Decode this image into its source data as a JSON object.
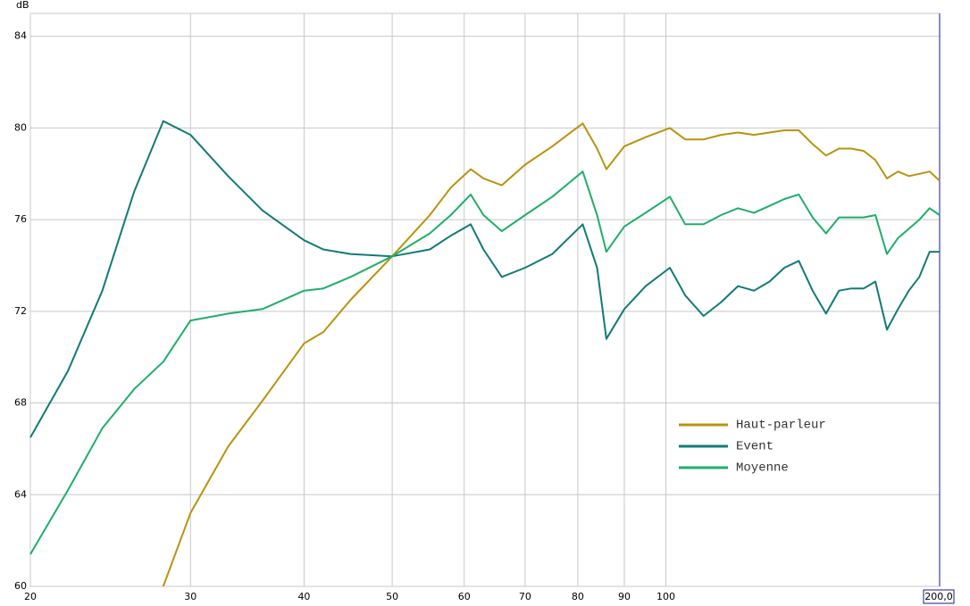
{
  "chart_data": {
    "type": "line",
    "ylabel": "dB",
    "xscale": "log",
    "grid": true,
    "legend": "lower right",
    "x": [
      20,
      22,
      24,
      26,
      28,
      30,
      33,
      36,
      40,
      42,
      45,
      50,
      55,
      58,
      61,
      63,
      66,
      70,
      75,
      81,
      84,
      86,
      90,
      95,
      101,
      105,
      110,
      115,
      120,
      125,
      130,
      135,
      140,
      145,
      150,
      155,
      160,
      165,
      170,
      175,
      180,
      185,
      190,
      195,
      200
    ],
    "xlim": [
      20,
      200
    ],
    "xticks": [
      20,
      30,
      40,
      50,
      60,
      70,
      80,
      90,
      100,
      {
        "value": 200,
        "label": "200,0"
      }
    ],
    "ylim": [
      60,
      85
    ],
    "yticks": [
      60,
      64,
      68,
      72,
      76,
      80,
      84
    ],
    "series": [
      {
        "name": "Haut-parleur",
        "color": "#b8930f",
        "values": [
          null,
          null,
          null,
          null,
          60.0,
          63.2,
          66.1,
          68.1,
          70.6,
          71.1,
          72.5,
          74.4,
          76.2,
          77.4,
          78.2,
          77.8,
          77.5,
          78.4,
          79.2,
          80.2,
          79.1,
          78.2,
          79.2,
          79.6,
          80.0,
          79.5,
          79.5,
          79.7,
          79.8,
          79.7,
          79.8,
          79.9,
          79.9,
          79.3,
          78.8,
          79.1,
          79.1,
          79.0,
          78.6,
          77.8,
          78.1,
          77.9,
          78.0,
          78.1,
          77.7
        ]
      },
      {
        "name": "Event",
        "color": "#127a78",
        "values": [
          66.5,
          69.4,
          72.9,
          77.2,
          80.3,
          79.7,
          77.9,
          76.4,
          75.1,
          74.7,
          74.5,
          74.4,
          74.7,
          75.3,
          75.8,
          74.7,
          73.5,
          73.9,
          74.5,
          75.8,
          73.9,
          70.8,
          72.1,
          73.1,
          73.9,
          72.7,
          71.8,
          72.4,
          73.1,
          72.9,
          73.3,
          73.9,
          74.2,
          72.9,
          71.9,
          72.9,
          73.0,
          73.0,
          73.3,
          71.2,
          72.1,
          72.9,
          73.5,
          74.6,
          74.6
        ]
      },
      {
        "name": "Moyenne",
        "color": "#1fae6a",
        "values": [
          61.4,
          64.2,
          66.9,
          68.6,
          69.8,
          71.6,
          71.9,
          72.1,
          72.9,
          73.0,
          73.5,
          74.4,
          75.4,
          76.2,
          77.1,
          76.2,
          75.5,
          76.2,
          77.0,
          78.1,
          76.2,
          74.6,
          75.7,
          76.3,
          77.0,
          75.8,
          75.8,
          76.2,
          76.5,
          76.3,
          76.6,
          76.9,
          77.1,
          76.1,
          75.4,
          76.1,
          76.1,
          76.1,
          76.2,
          74.5,
          75.2,
          75.6,
          76.0,
          76.5,
          76.2
        ]
      }
    ]
  }
}
